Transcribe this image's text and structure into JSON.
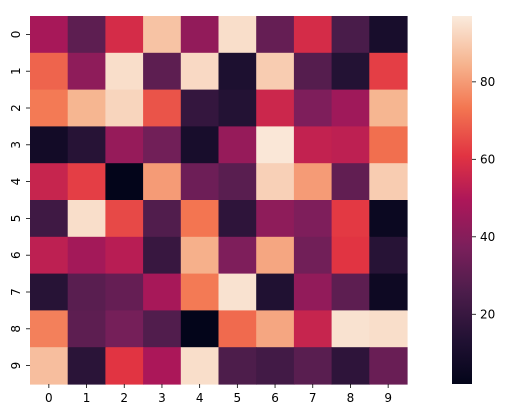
{
  "chart_data": {
    "type": "heatmap",
    "title": "",
    "xlabel": "",
    "ylabel": "",
    "x_categories": [
      "0",
      "1",
      "2",
      "3",
      "4",
      "5",
      "6",
      "7",
      "8",
      "9"
    ],
    "y_categories": [
      "0",
      "1",
      "2",
      "3",
      "4",
      "5",
      "6",
      "7",
      "8",
      "9"
    ],
    "values": [
      [
        48,
        30,
        58,
        88,
        43,
        94,
        32,
        58,
        25,
        10
      ],
      [
        70,
        42,
        94,
        30,
        93,
        12,
        90,
        28,
        14,
        63
      ],
      [
        74,
        85,
        92,
        67,
        19,
        14,
        56,
        38,
        46,
        85
      ],
      [
        8,
        15,
        44,
        35,
        10,
        44,
        96,
        54,
        53,
        72
      ],
      [
        55,
        63,
        2,
        80,
        34,
        29,
        91,
        80,
        31,
        90
      ],
      [
        22,
        94,
        65,
        27,
        73,
        17,
        42,
        38,
        62,
        5
      ],
      [
        53,
        47,
        52,
        20,
        84,
        38,
        82,
        35,
        61,
        15
      ],
      [
        15,
        29,
        32,
        48,
        74,
        95,
        13,
        43,
        30,
        6
      ],
      [
        75,
        30,
        36,
        27,
        2,
        71,
        82,
        55,
        95,
        94
      ],
      [
        87,
        16,
        61,
        49,
        94,
        26,
        23,
        29,
        17,
        33
      ]
    ],
    "colorbar": {
      "ticks": [
        20,
        40,
        60,
        80
      ],
      "vmin": 2,
      "vmax": 97
    },
    "colormap": "rocket"
  }
}
